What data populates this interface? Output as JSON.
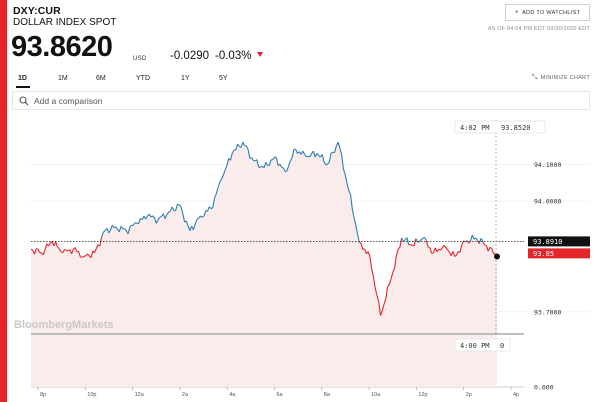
{
  "security": {
    "ticker": "DXY:CUR",
    "name": "DOLLAR INDEX SPOT",
    "price": "93.8620",
    "currency": "USD",
    "change": "-0.0290",
    "change_pct": "-0.03%"
  },
  "header": {
    "watchlist_label": "ADD TO WATCHLIST",
    "as_of": "AS OF 04:04 PM EDT 09/30/2020 EDT",
    "minimize_label": "MINIMIZE CHART"
  },
  "ranges": [
    "1D",
    "1M",
    "6M",
    "YTD",
    "1Y",
    "5Y"
  ],
  "active_range": "1D",
  "compare": {
    "placeholder": "Add a comparison"
  },
  "chart": {
    "watermark": "BloombergMarkets",
    "cursor_top_time": "4:02 PM",
    "cursor_top_value": "93.8520",
    "cursor_bottom_time": "4:00 PM",
    "cursor_bottom_value": "0",
    "prev_close_label": "93.8910",
    "current_label": "93.85",
    "volume_zero_label": "0.000"
  },
  "colors": {
    "accent": "#e4252a",
    "line_up": "#2a7fb0",
    "line_down": "#e4252a",
    "fill": "#fbecec"
  },
  "chart_data": {
    "type": "line",
    "title": "",
    "prev_close": 93.891,
    "ylim": [
      93.64,
      94.22
    ],
    "yticks": [
      94.1,
      94.0,
      93.7
    ],
    "ytick_labels": [
      "94.1000",
      "94.0000",
      "93.7000"
    ],
    "xtick_labels": [
      "8p",
      "10p",
      "12a",
      "2a",
      "4a",
      "6a",
      "8a",
      "10a",
      "12p",
      "2p",
      "4p"
    ],
    "grid": true,
    "x": [
      "7p",
      "7:30p",
      "8p",
      "8:30p",
      "9p",
      "9:30p",
      "10p",
      "10:30p",
      "11p",
      "11:30p",
      "12a",
      "12:30a",
      "1a",
      "1:30a",
      "2a",
      "2:30a",
      "3a",
      "3:30a",
      "4a",
      "4:30a",
      "5a",
      "5:30a",
      "6a",
      "6:30a",
      "7a",
      "7:30a",
      "8a",
      "8:30a",
      "9a",
      "9:20a",
      "9:40a",
      "10a",
      "10:20a",
      "10:40a",
      "11a",
      "11:30a",
      "12p",
      "12:30p",
      "1p",
      "1:30p",
      "2p",
      "2:30p",
      "3p",
      "3:30p",
      "4p"
    ],
    "values": [
      93.87,
      93.86,
      93.89,
      93.86,
      93.87,
      93.85,
      93.86,
      93.92,
      93.93,
      93.92,
      93.94,
      93.96,
      93.95,
      93.97,
      93.99,
      93.92,
      93.96,
      93.98,
      94.06,
      94.13,
      94.16,
      94.11,
      94.09,
      94.12,
      94.08,
      94.14,
      94.12,
      94.13,
      94.1,
      94.16,
      94.03,
      93.89,
      93.85,
      93.69,
      93.79,
      93.9,
      93.88,
      93.9,
      93.86,
      93.88,
      93.85,
      93.89,
      93.9,
      93.88,
      93.85
    ]
  }
}
